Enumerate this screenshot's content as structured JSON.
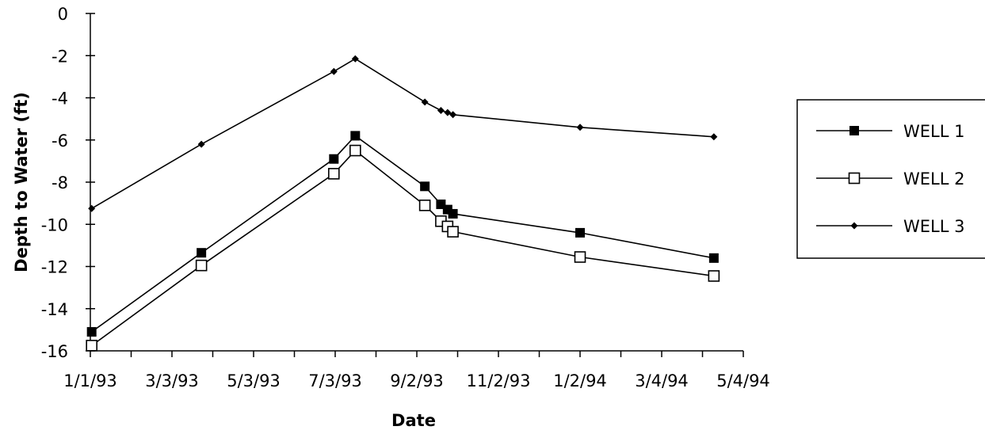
{
  "chart_data": {
    "type": "line",
    "title": "",
    "xlabel": "Date",
    "ylabel": "Depth to Water (ft)",
    "x_tick_labels": [
      "1/1/93",
      "3/3/93",
      "5/3/93",
      "7/3/93",
      "9/2/93",
      "11/2/93",
      "1/2/94",
      "3/4/94",
      "5/4/94"
    ],
    "x_tick_dates": [
      "1993-01-01",
      "1993-03-03",
      "1993-05-03",
      "1993-07-03",
      "1993-09-02",
      "1993-11-02",
      "1994-01-02",
      "1994-03-04",
      "1994-05-04"
    ],
    "xlim": [
      "1993-01-01",
      "1994-05-04"
    ],
    "ylim": [
      -16,
      0
    ],
    "y_ticks": [
      0,
      -2,
      -4,
      -6,
      -8,
      -10,
      -12,
      -14,
      -16
    ],
    "grid": false,
    "legend_position": "right",
    "x": [
      "1993-01-02",
      "1993-03-25",
      "1993-07-02",
      "1993-07-18",
      "1993-09-08",
      "1993-09-20",
      "1993-09-25",
      "1993-09-29",
      "1994-01-02",
      "1994-04-12"
    ],
    "series": [
      {
        "name": "WELL 1",
        "marker": "filled-square",
        "values": [
          -15.1,
          -11.35,
          -6.9,
          -5.8,
          -8.2,
          -9.05,
          -9.3,
          -9.5,
          -10.4,
          -11.6
        ]
      },
      {
        "name": "WELL 2",
        "marker": "open-square",
        "values": [
          -15.75,
          -11.95,
          -7.6,
          -6.5,
          -9.1,
          -9.85,
          -10.1,
          -10.35,
          -11.55,
          -12.45
        ]
      },
      {
        "name": "WELL 3",
        "marker": "diamond",
        "values": [
          -9.25,
          -6.2,
          -2.75,
          -2.15,
          -4.2,
          -4.6,
          -4.7,
          -4.8,
          -5.4,
          -5.85
        ]
      }
    ]
  }
}
